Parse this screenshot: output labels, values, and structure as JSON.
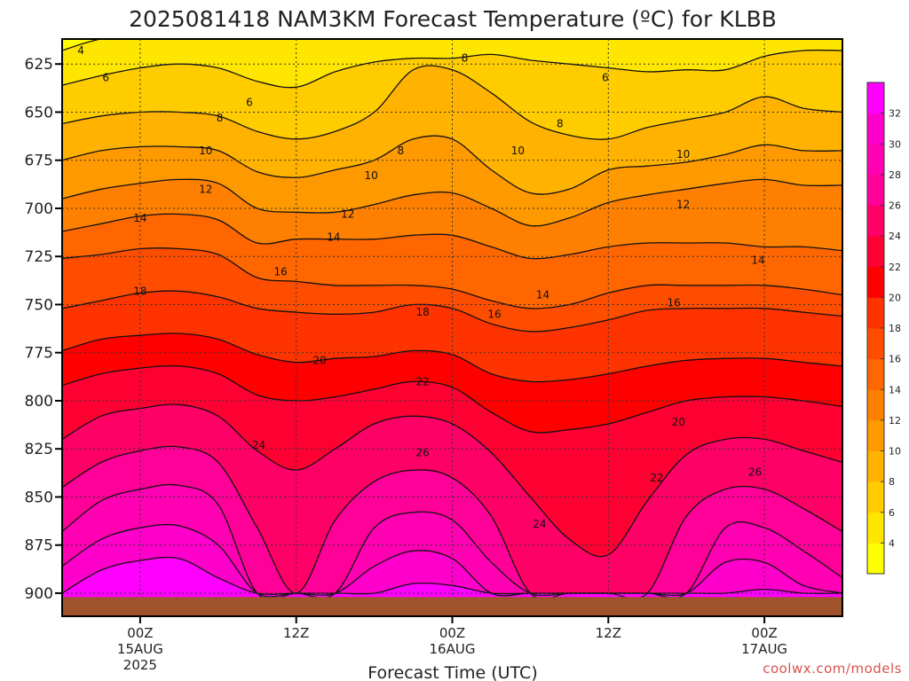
{
  "chart_data": {
    "type": "contour",
    "title": "2025081418 NAM3KM Forecast Temperature (ºC) for KLBB",
    "xlabel": "Forecast Time (UTC)",
    "ylabel": "",
    "credit": "coolwx.com/models",
    "y_axis": {
      "quantity": "pressure (hPa)",
      "inverted": true,
      "range": [
        612,
        912
      ],
      "ticks": [
        625,
        650,
        675,
        700,
        725,
        750,
        775,
        800,
        825,
        850,
        875,
        900
      ]
    },
    "x_axis": {
      "range_hours_from_2025-08-14T18Z": [
        -5,
        45
      ],
      "ticks": [
        {
          "label": "00Z",
          "sub": "15AUG",
          "sub2": "2025",
          "hour": 0
        },
        {
          "label": "12Z",
          "sub": "",
          "sub2": "",
          "hour": 10
        },
        {
          "label": "00Z",
          "sub": "16AUG",
          "sub2": "",
          "hour": 20
        },
        {
          "label": "12Z",
          "sub": "",
          "sub2": "",
          "hour": 30
        },
        {
          "label": "00Z",
          "sub": "17AUG",
          "sub2": "",
          "hour": 40
        }
      ]
    },
    "grid": "dotted",
    "colorbar": {
      "levels": [
        4,
        6,
        8,
        10,
        12,
        14,
        16,
        18,
        20,
        22,
        24,
        26,
        28,
        30,
        32
      ],
      "colors": [
        "#ffff00",
        "#ffe600",
        "#ffcc00",
        "#ffb300",
        "#ff9900",
        "#ff8000",
        "#ff6600",
        "#ff4d00",
        "#ff3300",
        "#ff0000",
        "#ff0033",
        "#ff0066",
        "#ff0099",
        "#ff00b3",
        "#ff00cc",
        "#ff00ff"
      ]
    },
    "contours": [
      {
        "level": 4,
        "pressure_profile": [
          618,
          612,
          612,
          612,
          612,
          612,
          612,
          612,
          612,
          612,
          612,
          612,
          612,
          612,
          612,
          612,
          612,
          612,
          612,
          612,
          612
        ]
      },
      {
        "level": 6,
        "pressure_profile": [
          636,
          631,
          627,
          625,
          627,
          634,
          637,
          629,
          624,
          622,
          622,
          620,
          623,
          625,
          627,
          629,
          628,
          628,
          621,
          618,
          618
        ]
      },
      {
        "level": 8,
        "pressure_profile": [
          656,
          652,
          650,
          650,
          652,
          660,
          664,
          660,
          650,
          628,
          628,
          640,
          655,
          662,
          664,
          658,
          654,
          650,
          642,
          648,
          650
        ]
      },
      {
        "level": 10,
        "pressure_profile": [
          675,
          670,
          668,
          668,
          670,
          681,
          684,
          680,
          675,
          664,
          664,
          680,
          692,
          690,
          680,
          678,
          676,
          672,
          667,
          670,
          670
        ]
      },
      {
        "level": 12,
        "pressure_profile": [
          695,
          690,
          687,
          685,
          687,
          700,
          702,
          702,
          698,
          693,
          692,
          700,
          709,
          705,
          697,
          693,
          690,
          687,
          685,
          688,
          688
        ]
      },
      {
        "level": 14,
        "pressure_profile": [
          712,
          708,
          704,
          703,
          706,
          718,
          716,
          716,
          716,
          714,
          714,
          720,
          726,
          724,
          720,
          718,
          718,
          718,
          720,
          720,
          722
        ]
      },
      {
        "level": 16,
        "pressure_profile": [
          726,
          724,
          721,
          721,
          724,
          736,
          738,
          740,
          740,
          740,
          742,
          748,
          752,
          750,
          744,
          740,
          740,
          740,
          740,
          742,
          745
        ]
      },
      {
        "level": 18,
        "pressure_profile": [
          752,
          748,
          744,
          743,
          746,
          752,
          754,
          755,
          754,
          750,
          752,
          760,
          764,
          762,
          758,
          753,
          752,
          752,
          752,
          754,
          756
        ]
      },
      {
        "level": 20,
        "pressure_profile": [
          774,
          768,
          766,
          765,
          768,
          776,
          780,
          778,
          777,
          774,
          776,
          786,
          790,
          789,
          786,
          782,
          779,
          778,
          778,
          780,
          782
        ]
      },
      {
        "level": 22,
        "pressure_profile": [
          792,
          786,
          783,
          782,
          786,
          797,
          800,
          798,
          794,
          790,
          793,
          806,
          816,
          815,
          812,
          806,
          800,
          798,
          798,
          800,
          803
        ]
      },
      {
        "level": 24,
        "pressure_profile": [
          820,
          808,
          804,
          802,
          808,
          826,
          836,
          825,
          812,
          808,
          812,
          827,
          850,
          872,
          880,
          852,
          828,
          820,
          820,
          826,
          832
        ]
      },
      {
        "level": 26,
        "pressure_profile": [
          845,
          832,
          826,
          824,
          832,
          866,
          900,
          862,
          842,
          836,
          840,
          860,
          900,
          900,
          900,
          900,
          860,
          846,
          846,
          856,
          868
        ]
      },
      {
        "level": 28,
        "pressure_profile": [
          868,
          852,
          846,
          844,
          854,
          900,
          900,
          900,
          866,
          858,
          862,
          884,
          900,
          900,
          900,
          900,
          900,
          866,
          866,
          878,
          892
        ]
      },
      {
        "level": 30,
        "pressure_profile": [
          886,
          872,
          866,
          865,
          875,
          900,
          900,
          900,
          886,
          878,
          882,
          900,
          900,
          900,
          900,
          900,
          900,
          884,
          884,
          896,
          900
        ]
      },
      {
        "level": 32,
        "pressure_profile": [
          900,
          888,
          883,
          882,
          892,
          900,
          900,
          900,
          900,
          895,
          896,
          900,
          900,
          900,
          900,
          900,
          900,
          900,
          898,
          900,
          900
        ]
      }
    ],
    "contour_labels": [
      {
        "text": "4",
        "hour": -3.8,
        "p": 618
      },
      {
        "text": "6",
        "hour": -2.2,
        "p": 632
      },
      {
        "text": "6",
        "hour": 7.0,
        "p": 645
      },
      {
        "text": "6",
        "hour": 29.8,
        "p": 632
      },
      {
        "text": "8",
        "hour": 20.8,
        "p": 622
      },
      {
        "text": "8",
        "hour": 5.1,
        "p": 653
      },
      {
        "text": "8",
        "hour": 16.7,
        "p": 670
      },
      {
        "text": "8",
        "hour": 26.9,
        "p": 656
      },
      {
        "text": "10",
        "hour": 4.2,
        "p": 670
      },
      {
        "text": "10",
        "hour": 14.8,
        "p": 683
      },
      {
        "text": "10",
        "hour": 24.2,
        "p": 670
      },
      {
        "text": "10",
        "hour": 34.8,
        "p": 672
      },
      {
        "text": "12",
        "hour": 4.2,
        "p": 690
      },
      {
        "text": "12",
        "hour": 13.3,
        "p": 703
      },
      {
        "text": "12",
        "hour": 34.8,
        "p": 698
      },
      {
        "text": "14",
        "hour": 0.0,
        "p": 705
      },
      {
        "text": "14",
        "hour": 12.4,
        "p": 715
      },
      {
        "text": "14",
        "hour": 25.8,
        "p": 745
      },
      {
        "text": "14",
        "hour": 39.6,
        "p": 727
      },
      {
        "text": "16",
        "hour": 9.0,
        "p": 733
      },
      {
        "text": "16",
        "hour": 22.7,
        "p": 755
      },
      {
        "text": "16",
        "hour": 34.2,
        "p": 749
      },
      {
        "text": "18",
        "hour": 0.0,
        "p": 743
      },
      {
        "text": "18",
        "hour": 18.1,
        "p": 754
      },
      {
        "text": "20",
        "hour": 11.5,
        "p": 779
      },
      {
        "text": "20",
        "hour": 34.5,
        "p": 811
      },
      {
        "text": "22",
        "hour": 18.1,
        "p": 790
      },
      {
        "text": "22",
        "hour": 33.1,
        "p": 840
      },
      {
        "text": "24",
        "hour": 7.6,
        "p": 823
      },
      {
        "text": "24",
        "hour": 25.6,
        "p": 864
      },
      {
        "text": "26",
        "hour": 18.1,
        "p": 827
      },
      {
        "text": "26",
        "hour": 39.4,
        "p": 837
      }
    ],
    "terrain": {
      "color": "#a0522d",
      "surface_pressure_approx": 902
    }
  }
}
